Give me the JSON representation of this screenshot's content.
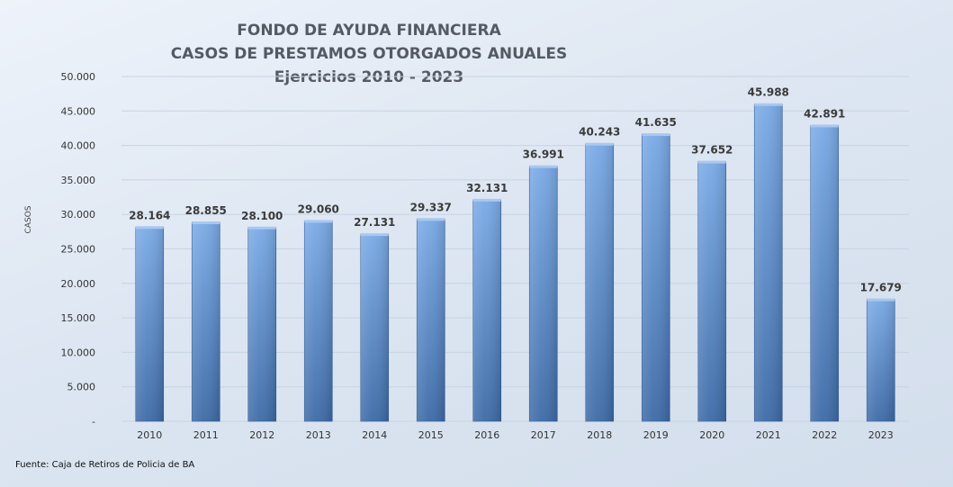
{
  "chart_data": {
    "type": "bar",
    "title": [
      "FONDO DE AYUDA FINANCIERA",
      "CASOS DE PRESTAMOS  OTORGADOS ANUALES",
      "Ejercicios  2010 - 2023"
    ],
    "ylabel": "CASOS",
    "xlabel": "",
    "categories": [
      "2010",
      "2011",
      "2012",
      "2013",
      "2014",
      "2015",
      "2016",
      "2017",
      "2018",
      "2019",
      "2020",
      "2021",
      "2022",
      "2023"
    ],
    "values": [
      28164,
      28855,
      28100,
      29060,
      27131,
      29337,
      32131,
      36991,
      40243,
      41635,
      37652,
      45988,
      42891,
      17679
    ],
    "value_labels": [
      "28.164",
      "28.855",
      "28.100",
      "29.060",
      "27.131",
      "29.337",
      "32.131",
      "36.991",
      "40.243",
      "41.635",
      "37.652",
      "45.988",
      "42.891",
      "17.679"
    ],
    "ylim": [
      0,
      50000
    ],
    "yticks": [
      0,
      5000,
      10000,
      15000,
      20000,
      25000,
      30000,
      35000,
      40000,
      45000,
      50000
    ],
    "ytick_labels": [
      "-",
      "5.000",
      "10.000",
      "15.000",
      "20.000",
      "25.000",
      "30.000",
      "35.000",
      "40.000",
      "45.000",
      "50.000"
    ],
    "grid": true,
    "legend": "none",
    "colors": {
      "bar_light": "#7aaae6",
      "bar_dark": "#3d6aa6",
      "gridline": "#c8d3e2",
      "label": "#3a3a3a"
    }
  },
  "source": "Fuente: Caja de Retiros de Policia de BA"
}
